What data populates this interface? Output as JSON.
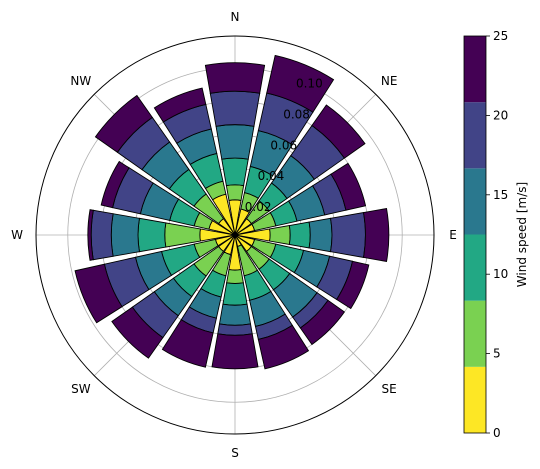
{
  "chart_data": {
    "type": "windrose",
    "directions": [
      "N",
      "NNE",
      "NE",
      "ENE",
      "E",
      "ESE",
      "SE",
      "SSE",
      "S",
      "SSW",
      "SW",
      "WSW",
      "W",
      "WNW",
      "NW",
      "NNW"
    ],
    "direction_labels": [
      "N",
      "NE",
      "E",
      "SE",
      "S",
      "SW",
      "W",
      "NW"
    ],
    "bins": [
      {
        "name": "0-5",
        "color": "#fde725"
      },
      {
        "name": "5-10",
        "color": "#7ad151"
      },
      {
        "name": "10-15",
        "color": "#22a884"
      },
      {
        "name": "15-20",
        "color": "#2a788e"
      },
      {
        "name": "20-25",
        "color": "#414487"
      },
      {
        "name": "25+",
        "color": "#440154"
      }
    ],
    "cumulative_frequencies": {
      "N": [
        0.021,
        0.03,
        0.046,
        0.066,
        0.086,
        0.103
      ],
      "NNE": [
        0.016,
        0.026,
        0.042,
        0.064,
        0.087,
        0.11
      ],
      "NE": [
        0.012,
        0.025,
        0.038,
        0.058,
        0.08,
        0.095
      ],
      "ENE": [
        0.012,
        0.025,
        0.038,
        0.055,
        0.068,
        0.08
      ],
      "E": [
        0.021,
        0.033,
        0.045,
        0.058,
        0.078,
        0.092
      ],
      "ESE": [
        0.012,
        0.025,
        0.042,
        0.058,
        0.072,
        0.082
      ],
      "SE": [
        0.012,
        0.025,
        0.04,
        0.06,
        0.068,
        0.08
      ],
      "SSE": [
        0.007,
        0.025,
        0.04,
        0.056,
        0.064,
        0.082
      ],
      "S": [
        0.021,
        0.029,
        0.042,
        0.054,
        0.06,
        0.08
      ],
      "SSW": [
        0.012,
        0.025,
        0.038,
        0.051,
        0.06,
        0.081
      ],
      "SW": [
        0.012,
        0.03,
        0.045,
        0.059,
        0.075,
        0.09
      ],
      "WSW": [
        0.012,
        0.025,
        0.045,
        0.061,
        0.08,
        0.098
      ],
      "W": [
        0.021,
        0.042,
        0.058,
        0.074,
        0.086,
        0.088
      ],
      "WNW": [
        0.016,
        0.025,
        0.04,
        0.058,
        0.075,
        0.082
      ],
      "NW": [
        0.012,
        0.03,
        0.048,
        0.068,
        0.086,
        0.102
      ],
      "NNW": [
        0.025,
        0.033,
        0.05,
        0.065,
        0.08,
        0.09
      ]
    },
    "radial_ticks": [
      0.02,
      0.04,
      0.06,
      0.08,
      0.1
    ],
    "radial_tick_labels": [
      "0.02",
      "0.04",
      "0.06",
      "0.08",
      "0.10"
    ],
    "rmax": 0.119,
    "grid": true,
    "colorbar": {
      "label": "Wind speed [m/s]",
      "ticks": [
        "0",
        "5",
        "10",
        "15",
        "20",
        "25"
      ],
      "colors": [
        "#fde725",
        "#7ad151",
        "#22a884",
        "#2a788e",
        "#414487",
        "#440154"
      ]
    }
  }
}
